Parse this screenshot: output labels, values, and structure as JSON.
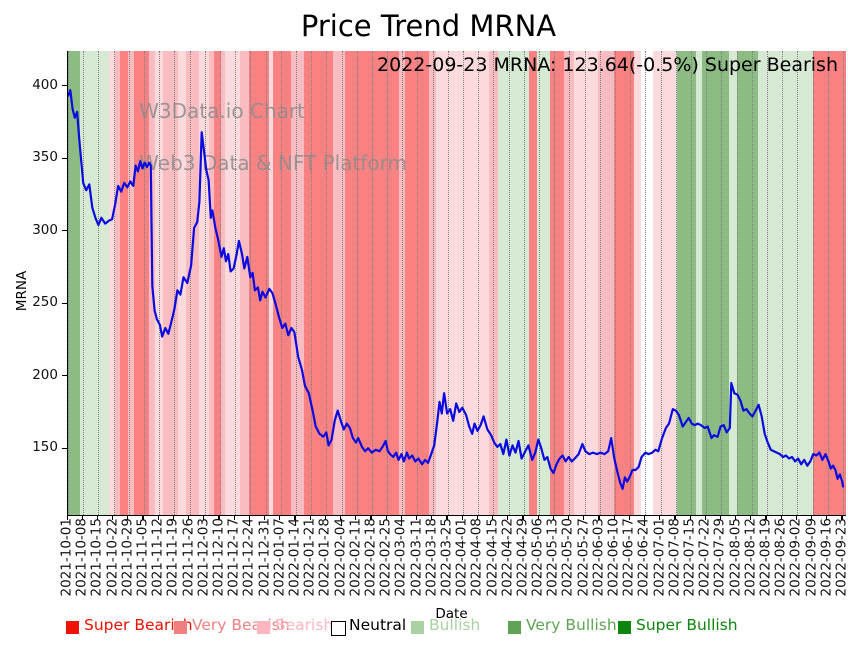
{
  "title": "Price Trend MRNA",
  "annotation": "2022-09-23 MRNA: 123.64(-0.5%) Super Bearish",
  "watermark": {
    "line1": "W3Data.io Chart",
    "line2": "Web3 Data & NFT Platform"
  },
  "y_axis": {
    "label": "MRNA",
    "ticks": [
      150,
      200,
      250,
      300,
      350,
      400
    ]
  },
  "x_axis": {
    "label": "Date"
  },
  "legend": [
    {
      "label": "Super Bearish",
      "color": "#ee1100",
      "swatch": "#ee1100"
    },
    {
      "label": "Very Bearish",
      "color": "#f08080",
      "swatch": "#f08080"
    },
    {
      "label": "Bearish",
      "color": "#ffb6c1",
      "swatch": "#ffb6c1"
    },
    {
      "label": "Neutral",
      "color": "#000000",
      "swatch": "#ffffff"
    },
    {
      "label": "Bullish",
      "color": "#a9d1a1",
      "swatch": "#a9d1a1"
    },
    {
      "label": "Very Bullish",
      "color": "#5fa455",
      "swatch": "#5fa455"
    },
    {
      "label": "Super Bullish",
      "color": "#0d860d",
      "swatch": "#0d860d"
    }
  ],
  "chart_data": {
    "type": "line",
    "title": "Price Trend MRNA",
    "xlabel": "Date",
    "ylabel": "MRNA",
    "series_name": "MRNA",
    "line_color": "#0b0bdf",
    "grid": "vertical-dotted",
    "ylim": [
      104,
      424
    ],
    "xlim_weeks": [
      0,
      51.2
    ],
    "x_unit": "weeks since 2021-10-01",
    "last_point": {
      "date": "2022-09-23",
      "value": 123.64,
      "change_pct": -0.5,
      "sentiment": "Super Bearish"
    },
    "x_tick_labels": [
      "2021-10-01",
      "2021-10-08",
      "2021-10-15",
      "2021-10-22",
      "2021-10-29",
      "2021-11-05",
      "2021-11-12",
      "2021-11-19",
      "2021-11-26",
      "2021-12-03",
      "2021-12-10",
      "2021-12-17",
      "2021-12-24",
      "2021-12-31",
      "2022-01-07",
      "2022-01-14",
      "2022-01-21",
      "2022-01-28",
      "2022-02-04",
      "2022-02-11",
      "2022-02-18",
      "2022-02-25",
      "2022-03-04",
      "2022-03-11",
      "2022-03-18",
      "2022-03-25",
      "2022-04-01",
      "2022-04-08",
      "2022-04-15",
      "2022-04-22",
      "2022-04-29",
      "2022-05-06",
      "2022-05-13",
      "2022-05-20",
      "2022-05-27",
      "2022-06-03",
      "2022-06-10",
      "2022-06-17",
      "2022-06-24",
      "2022-07-01",
      "2022-07-08",
      "2022-07-15",
      "2022-07-22",
      "2022-07-29",
      "2022-08-05",
      "2022-08-12",
      "2022-08-19",
      "2022-08-26",
      "2022-09-02",
      "2022-09-09",
      "2022-09-16",
      "2022-09-23"
    ],
    "points": [
      [
        0,
        393
      ],
      [
        0.15,
        397
      ],
      [
        0.3,
        384
      ],
      [
        0.45,
        378
      ],
      [
        0.6,
        382
      ],
      [
        0.75,
        362
      ],
      [
        1,
        333
      ],
      [
        1.2,
        328
      ],
      [
        1.4,
        332
      ],
      [
        1.6,
        316
      ],
      [
        1.8,
        309
      ],
      [
        2,
        304
      ],
      [
        2.2,
        309
      ],
      [
        2.45,
        305
      ],
      [
        2.7,
        307
      ],
      [
        2.9,
        308
      ],
      [
        3.1,
        318
      ],
      [
        3.3,
        331
      ],
      [
        3.5,
        327
      ],
      [
        3.7,
        333
      ],
      [
        3.9,
        330
      ],
      [
        4.1,
        334
      ],
      [
        4.3,
        331
      ],
      [
        4.45,
        345
      ],
      [
        4.6,
        341
      ],
      [
        4.75,
        348
      ],
      [
        4.9,
        343
      ],
      [
        5.05,
        347
      ],
      [
        5.2,
        344
      ],
      [
        5.35,
        347
      ],
      [
        5.45,
        345
      ],
      [
        5.55,
        262
      ],
      [
        5.7,
        245
      ],
      [
        5.85,
        239
      ],
      [
        6.05,
        235
      ],
      [
        6.2,
        227
      ],
      [
        6.4,
        233
      ],
      [
        6.6,
        229
      ],
      [
        6.8,
        237
      ],
      [
        7,
        246
      ],
      [
        7.2,
        259
      ],
      [
        7.4,
        256
      ],
      [
        7.6,
        268
      ],
      [
        7.85,
        264
      ],
      [
        8.1,
        276
      ],
      [
        8.3,
        302
      ],
      [
        8.5,
        306
      ],
      [
        8.65,
        320
      ],
      [
        8.8,
        368
      ],
      [
        8.95,
        355
      ],
      [
        9.1,
        342
      ],
      [
        9.25,
        335
      ],
      [
        9.4,
        309
      ],
      [
        9.5,
        314
      ],
      [
        9.7,
        302
      ],
      [
        9.9,
        293
      ],
      [
        10.1,
        282
      ],
      [
        10.25,
        288
      ],
      [
        10.4,
        279
      ],
      [
        10.55,
        284
      ],
      [
        10.7,
        272
      ],
      [
        10.9,
        274
      ],
      [
        11.1,
        284
      ],
      [
        11.25,
        293
      ],
      [
        11.45,
        284
      ],
      [
        11.6,
        274
      ],
      [
        11.8,
        282
      ],
      [
        12,
        268
      ],
      [
        12.15,
        271
      ],
      [
        12.3,
        259
      ],
      [
        12.5,
        261
      ],
      [
        12.65,
        252
      ],
      [
        12.8,
        258
      ],
      [
        13,
        254
      ],
      [
        13.25,
        260
      ],
      [
        13.45,
        257
      ],
      [
        13.65,
        250
      ],
      [
        13.9,
        240
      ],
      [
        14.1,
        233
      ],
      [
        14.3,
        236
      ],
      [
        14.5,
        228
      ],
      [
        14.7,
        233
      ],
      [
        14.9,
        230
      ],
      [
        15.15,
        213
      ],
      [
        15.4,
        204
      ],
      [
        15.6,
        193
      ],
      [
        15.85,
        188
      ],
      [
        16.1,
        176
      ],
      [
        16.3,
        165
      ],
      [
        16.55,
        160
      ],
      [
        16.8,
        158
      ],
      [
        17,
        161
      ],
      [
        17.15,
        152
      ],
      [
        17.35,
        156
      ],
      [
        17.55,
        169
      ],
      [
        17.75,
        176
      ],
      [
        17.95,
        169
      ],
      [
        18.15,
        163
      ],
      [
        18.35,
        167
      ],
      [
        18.55,
        164
      ],
      [
        18.75,
        157
      ],
      [
        18.95,
        154
      ],
      [
        19.1,
        157
      ],
      [
        19.35,
        151
      ],
      [
        19.55,
        148
      ],
      [
        19.75,
        150
      ],
      [
        20,
        147
      ],
      [
        20.25,
        149
      ],
      [
        20.5,
        148
      ],
      [
        20.7,
        151
      ],
      [
        20.9,
        155
      ],
      [
        21.05,
        148
      ],
      [
        21.2,
        146
      ],
      [
        21.4,
        144
      ],
      [
        21.6,
        147
      ],
      [
        21.75,
        142
      ],
      [
        21.95,
        146
      ],
      [
        22.1,
        141
      ],
      [
        22.3,
        147
      ],
      [
        22.45,
        143
      ],
      [
        22.65,
        145
      ],
      [
        22.85,
        141
      ],
      [
        23.05,
        143
      ],
      [
        23.3,
        139
      ],
      [
        23.5,
        142
      ],
      [
        23.7,
        140
      ],
      [
        23.9,
        146
      ],
      [
        24.1,
        152
      ],
      [
        24.3,
        168
      ],
      [
        24.45,
        182
      ],
      [
        24.6,
        174
      ],
      [
        24.75,
        188
      ],
      [
        24.95,
        174
      ],
      [
        25.15,
        177
      ],
      [
        25.35,
        169
      ],
      [
        25.55,
        181
      ],
      [
        25.75,
        175
      ],
      [
        25.95,
        178
      ],
      [
        26.2,
        173
      ],
      [
        26.4,
        165
      ],
      [
        26.6,
        160
      ],
      [
        26.75,
        167
      ],
      [
        26.95,
        162
      ],
      [
        27.15,
        166
      ],
      [
        27.35,
        172
      ],
      [
        27.6,
        163
      ],
      [
        27.85,
        159
      ],
      [
        28.05,
        154
      ],
      [
        28.25,
        151
      ],
      [
        28.45,
        153
      ],
      [
        28.65,
        146
      ],
      [
        28.85,
        156
      ],
      [
        29.05,
        145
      ],
      [
        29.25,
        152
      ],
      [
        29.45,
        147
      ],
      [
        29.65,
        155
      ],
      [
        29.85,
        143
      ],
      [
        30.05,
        147
      ],
      [
        30.3,
        152
      ],
      [
        30.55,
        142
      ],
      [
        30.75,
        147
      ],
      [
        30.95,
        156
      ],
      [
        31.15,
        150
      ],
      [
        31.35,
        142
      ],
      [
        31.55,
        144
      ],
      [
        31.75,
        136
      ],
      [
        31.95,
        133
      ],
      [
        32.15,
        139
      ],
      [
        32.35,
        143
      ],
      [
        32.55,
        145
      ],
      [
        32.75,
        141
      ],
      [
        32.95,
        144
      ],
      [
        33.15,
        141
      ],
      [
        33.35,
        143
      ],
      [
        33.6,
        146
      ],
      [
        33.85,
        153
      ],
      [
        34.05,
        148
      ],
      [
        34.3,
        146
      ],
      [
        34.55,
        147
      ],
      [
        34.8,
        146
      ],
      [
        35.05,
        147
      ],
      [
        35.3,
        146
      ],
      [
        35.55,
        148
      ],
      [
        35.75,
        157
      ],
      [
        35.95,
        143
      ],
      [
        36.15,
        134
      ],
      [
        36.35,
        126
      ],
      [
        36.5,
        122
      ],
      [
        36.65,
        130
      ],
      [
        36.8,
        127
      ],
      [
        36.95,
        130
      ],
      [
        37.15,
        135
      ],
      [
        37.35,
        135
      ],
      [
        37.55,
        137
      ],
      [
        37.75,
        144
      ],
      [
        38,
        147
      ],
      [
        38.2,
        146
      ],
      [
        38.45,
        147
      ],
      [
        38.65,
        149
      ],
      [
        38.85,
        148
      ],
      [
        39.1,
        157
      ],
      [
        39.35,
        164
      ],
      [
        39.55,
        167
      ],
      [
        39.8,
        177
      ],
      [
        40,
        176
      ],
      [
        40.2,
        173
      ],
      [
        40.45,
        165
      ],
      [
        40.65,
        168
      ],
      [
        40.85,
        171
      ],
      [
        41.05,
        167
      ],
      [
        41.25,
        166
      ],
      [
        41.45,
        167
      ],
      [
        41.65,
        166
      ],
      [
        41.9,
        164
      ],
      [
        42.1,
        165
      ],
      [
        42.35,
        157
      ],
      [
        42.5,
        159
      ],
      [
        42.75,
        158
      ],
      [
        42.95,
        165
      ],
      [
        43.15,
        166
      ],
      [
        43.35,
        161
      ],
      [
        43.55,
        164
      ],
      [
        43.65,
        195
      ],
      [
        43.85,
        188
      ],
      [
        44.05,
        187
      ],
      [
        44.25,
        183
      ],
      [
        44.45,
        176
      ],
      [
        44.65,
        177
      ],
      [
        44.85,
        174
      ],
      [
        45.05,
        172
      ],
      [
        45.25,
        176
      ],
      [
        45.45,
        180
      ],
      [
        45.65,
        172
      ],
      [
        45.85,
        160
      ],
      [
        46.05,
        154
      ],
      [
        46.25,
        149
      ],
      [
        46.45,
        148
      ],
      [
        46.65,
        147
      ],
      [
        46.85,
        146
      ],
      [
        47.05,
        144
      ],
      [
        47.25,
        145
      ],
      [
        47.45,
        143
      ],
      [
        47.65,
        144
      ],
      [
        47.85,
        141
      ],
      [
        48.05,
        143
      ],
      [
        48.25,
        139
      ],
      [
        48.45,
        142
      ],
      [
        48.65,
        138
      ],
      [
        48.85,
        141
      ],
      [
        49.05,
        146
      ],
      [
        49.25,
        145
      ],
      [
        49.45,
        147
      ],
      [
        49.65,
        142
      ],
      [
        49.85,
        146
      ],
      [
        50.05,
        141
      ],
      [
        50.2,
        136
      ],
      [
        50.35,
        138
      ],
      [
        50.5,
        135
      ],
      [
        50.65,
        129
      ],
      [
        50.8,
        132
      ],
      [
        50.95,
        127
      ],
      [
        51,
        123.64
      ]
    ],
    "band_colors": {
      "super_bearish": "#fa8282",
      "very_bearish": "#f8bcc1",
      "bearish": "#fbdade",
      "neutral": "#ffffff",
      "bullish": "#d6e9d2",
      "very_bullish": "#8cbc84",
      "super_bullish": "#6fa963"
    },
    "background_bands": [
      {
        "start": 0,
        "end": 0.8,
        "sentiment": "very_bullish"
      },
      {
        "start": 0.8,
        "end": 2.7,
        "sentiment": "bullish"
      },
      {
        "start": 2.7,
        "end": 3.1,
        "sentiment": "bearish"
      },
      {
        "start": 3.1,
        "end": 3.4,
        "sentiment": "very_bearish"
      },
      {
        "start": 3.4,
        "end": 3.95,
        "sentiment": "super_bearish"
      },
      {
        "start": 3.95,
        "end": 4.35,
        "sentiment": "very_bearish"
      },
      {
        "start": 4.35,
        "end": 5.3,
        "sentiment": "super_bearish"
      },
      {
        "start": 5.3,
        "end": 5.75,
        "sentiment": "very_bearish"
      },
      {
        "start": 5.75,
        "end": 6.25,
        "sentiment": "bearish"
      },
      {
        "start": 6.25,
        "end": 7.25,
        "sentiment": "very_bearish"
      },
      {
        "start": 7.25,
        "end": 7.75,
        "sentiment": "bearish"
      },
      {
        "start": 7.75,
        "end": 8.6,
        "sentiment": "very_bearish"
      },
      {
        "start": 8.6,
        "end": 9.25,
        "sentiment": "bearish"
      },
      {
        "start": 9.25,
        "end": 9.6,
        "sentiment": "very_bearish"
      },
      {
        "start": 9.6,
        "end": 10.1,
        "sentiment": "super_bearish"
      },
      {
        "start": 10.1,
        "end": 10.35,
        "sentiment": "very_bearish"
      },
      {
        "start": 10.35,
        "end": 11.3,
        "sentiment": "bearish"
      },
      {
        "start": 11.3,
        "end": 11.9,
        "sentiment": "very_bearish"
      },
      {
        "start": 11.9,
        "end": 13.2,
        "sentiment": "super_bearish"
      },
      {
        "start": 13.2,
        "end": 13.5,
        "sentiment": "bearish"
      },
      {
        "start": 13.5,
        "end": 14.7,
        "sentiment": "super_bearish"
      },
      {
        "start": 14.7,
        "end": 15.5,
        "sentiment": "very_bearish"
      },
      {
        "start": 15.5,
        "end": 17.45,
        "sentiment": "super_bearish"
      },
      {
        "start": 17.45,
        "end": 18.25,
        "sentiment": "very_bearish"
      },
      {
        "start": 18.25,
        "end": 21.8,
        "sentiment": "super_bearish"
      },
      {
        "start": 21.8,
        "end": 22.2,
        "sentiment": "very_bearish"
      },
      {
        "start": 22.2,
        "end": 23.75,
        "sentiment": "super_bearish"
      },
      {
        "start": 23.75,
        "end": 24.2,
        "sentiment": "very_bearish"
      },
      {
        "start": 24.2,
        "end": 27.7,
        "sentiment": "bearish"
      },
      {
        "start": 27.7,
        "end": 28.3,
        "sentiment": "very_bearish"
      },
      {
        "start": 28.3,
        "end": 30.35,
        "sentiment": "bullish"
      },
      {
        "start": 30.35,
        "end": 30.85,
        "sentiment": "super_bearish"
      },
      {
        "start": 30.85,
        "end": 31.75,
        "sentiment": "bullish"
      },
      {
        "start": 31.75,
        "end": 32.65,
        "sentiment": "super_bearish"
      },
      {
        "start": 32.65,
        "end": 33.3,
        "sentiment": "very_bearish"
      },
      {
        "start": 33.3,
        "end": 34.9,
        "sentiment": "bearish"
      },
      {
        "start": 34.9,
        "end": 35.9,
        "sentiment": "very_bearish"
      },
      {
        "start": 35.9,
        "end": 37.25,
        "sentiment": "super_bearish"
      },
      {
        "start": 37.25,
        "end": 37.7,
        "sentiment": "bearish"
      },
      {
        "start": 37.7,
        "end": 38.5,
        "sentiment": "neutral"
      },
      {
        "start": 38.5,
        "end": 40.1,
        "sentiment": "bearish"
      },
      {
        "start": 40.1,
        "end": 41.35,
        "sentiment": "very_bullish"
      },
      {
        "start": 41.35,
        "end": 41.75,
        "sentiment": "bullish"
      },
      {
        "start": 41.75,
        "end": 43.5,
        "sentiment": "very_bullish"
      },
      {
        "start": 43.5,
        "end": 44.0,
        "sentiment": "bullish"
      },
      {
        "start": 44.0,
        "end": 45.4,
        "sentiment": "very_bullish"
      },
      {
        "start": 45.4,
        "end": 49.0,
        "sentiment": "bullish"
      },
      {
        "start": 49.0,
        "end": 51.2,
        "sentiment": "super_bearish"
      }
    ]
  }
}
